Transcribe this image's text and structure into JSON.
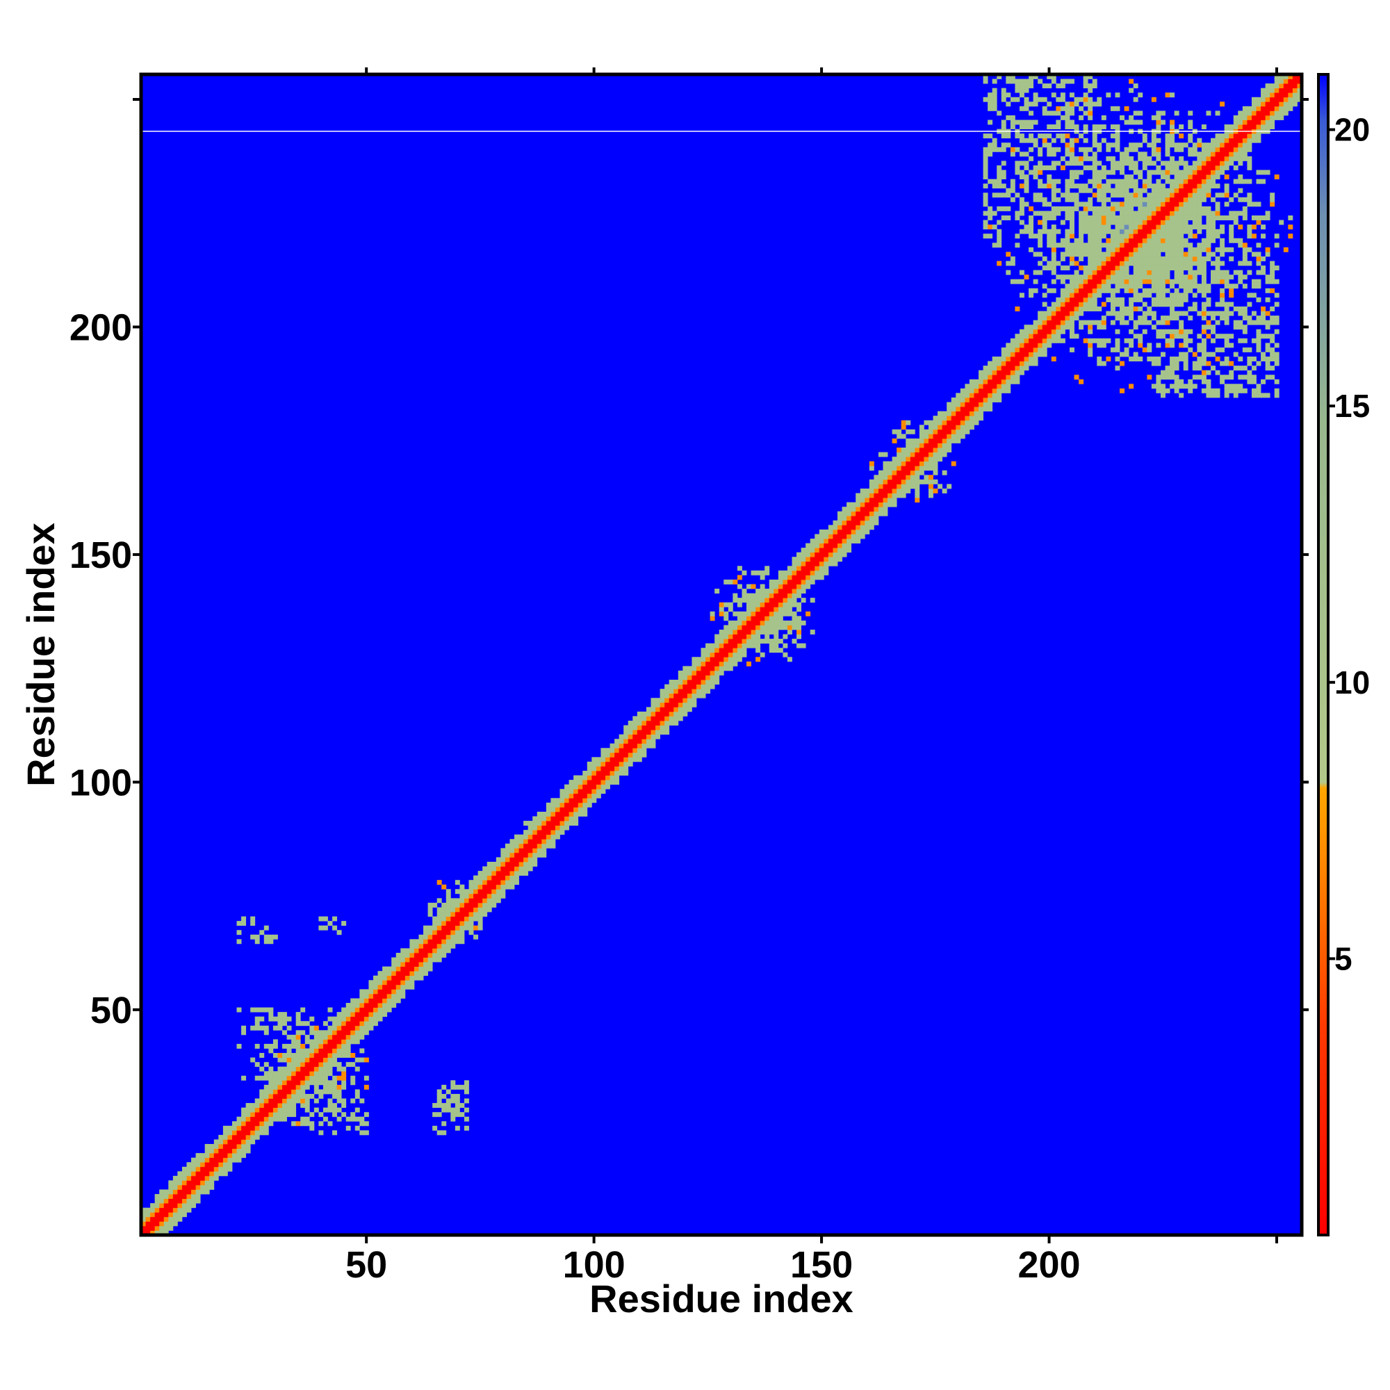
{
  "chart_data": {
    "type": "heatmap",
    "title": "",
    "xlabel": "Residue index",
    "ylabel": "Residue index",
    "n_residues": 255,
    "xlim": [
      1,
      255
    ],
    "ylim": [
      1,
      255
    ],
    "xticks": [
      50,
      100,
      150,
      200
    ],
    "yticks": [
      50,
      100,
      150,
      200
    ],
    "value_range": [
      0,
      21
    ],
    "colorbar": {
      "ticks": [
        5,
        10,
        15,
        20
      ],
      "placement": "right",
      "colors": {
        "near": "#ff0000",
        "mid": "#ff8c00",
        "band": "#a6c38b",
        "far": "#6a8cb8",
        "background": "#0000ff"
      }
    },
    "structure": {
      "diagonal_band": "Low values (≈0–5, red/orange) along the main diagonal i≈j; values rise to ≈10–16 within roughly ±4 residues off the diagonal; all other cells ≈21 (blue)",
      "contact_clusters": [
        {
          "x_range": [
            22,
            52
          ],
          "y_range": [
            22,
            52
          ],
          "range": "≈10–14"
        },
        {
          "x_range": [
            62,
            78
          ],
          "y_range": [
            62,
            80
          ],
          "range": "≈8–14"
        },
        {
          "x_range": [
            84,
            94
          ],
          "y_range": [
            84,
            96
          ],
          "range": "≈10–14"
        },
        {
          "x_range": [
            125,
            150
          ],
          "y_range": [
            125,
            150
          ],
          "range": "≈8–14"
        },
        {
          "x_range": [
            160,
            180
          ],
          "y_range": [
            160,
            180
          ],
          "range": "≈8–14"
        },
        {
          "x_range": [
            185,
            255
          ],
          "y_range": [
            185,
            255
          ],
          "range": "≈8–16"
        }
      ],
      "off_diagonal_features": [
        {
          "x_range": [
            22,
            30
          ],
          "y_range": [
            65,
            70
          ]
        },
        {
          "x_range": [
            40,
            45
          ],
          "y_range": [
            67,
            70
          ]
        },
        {
          "x_range": [
            65,
            72
          ],
          "y_range": [
            23,
            34
          ]
        },
        {
          "x_range": [
            38,
            50
          ],
          "y_range": [
            23,
            30
          ]
        },
        {
          "x_range": [
            22,
            32
          ],
          "y_range": [
            42,
            50
          ]
        },
        {
          "x_range": [
            222,
            250
          ],
          "y_range": [
            185,
            215
          ]
        },
        {
          "x_range": [
            186,
            210
          ],
          "y_range": [
            220,
            255
          ]
        }
      ],
      "gap_line_y": 243
    }
  }
}
